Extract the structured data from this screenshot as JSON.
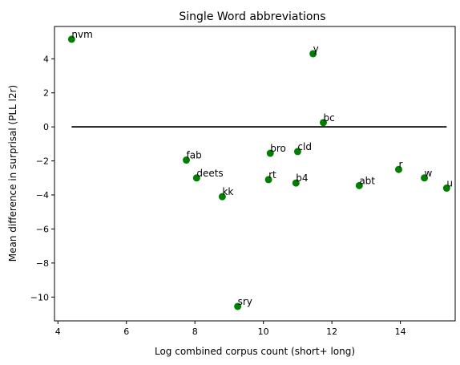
{
  "chart_data": {
    "type": "scatter",
    "title": "Single Word abbreviations",
    "xlabel": "Log combined corpus count (short+ long)",
    "ylabel": "Mean difference in surprisal (PLL l2r)",
    "xlim": [
      3.9,
      15.6
    ],
    "ylim": [
      -11.4,
      5.9
    ],
    "xticks": [
      4,
      6,
      8,
      10,
      12,
      14
    ],
    "yticks": [
      -10,
      -8,
      -6,
      -4,
      -2,
      0,
      2,
      4
    ],
    "grid": false,
    "colors": {
      "point": "#008000",
      "reference_line": "#000000"
    },
    "reference_line": {
      "y": 0,
      "x": [
        4.4,
        15.35
      ]
    },
    "points": [
      {
        "label": "nvm",
        "x": 4.4,
        "y": 5.15
      },
      {
        "label": "y",
        "x": 11.45,
        "y": 4.3
      },
      {
        "label": "bc",
        "x": 11.75,
        "y": 0.25
      },
      {
        "label": "bro",
        "x": 10.2,
        "y": -1.55
      },
      {
        "label": "cld",
        "x": 11.0,
        "y": -1.45
      },
      {
        "label": "fab",
        "x": 7.75,
        "y": -1.95
      },
      {
        "label": "deets",
        "x": 8.05,
        "y": -3.0
      },
      {
        "label": "rt",
        "x": 10.15,
        "y": -3.1
      },
      {
        "label": "b4",
        "x": 10.95,
        "y": -3.3
      },
      {
        "label": "kk",
        "x": 8.8,
        "y": -4.1
      },
      {
        "label": "abt",
        "x": 12.8,
        "y": -3.45
      },
      {
        "label": "r",
        "x": 13.95,
        "y": -2.5
      },
      {
        "label": "w",
        "x": 14.7,
        "y": -3.0
      },
      {
        "label": "u",
        "x": 15.35,
        "y": -3.6
      },
      {
        "label": "sry",
        "x": 9.25,
        "y": -10.55
      }
    ]
  }
}
